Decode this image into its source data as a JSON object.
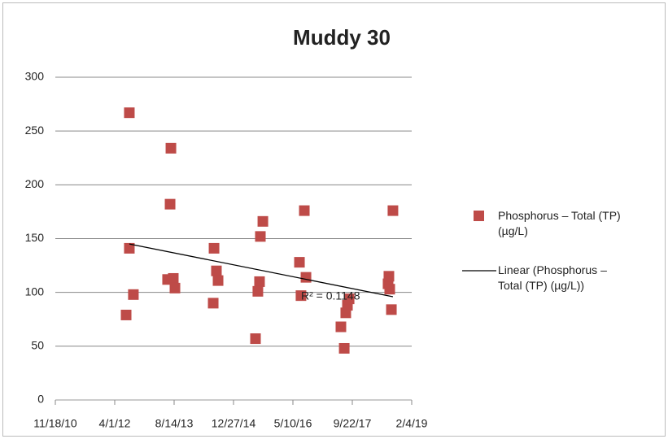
{
  "chart_data": {
    "type": "scatter",
    "title": "Muddy 30",
    "series": [
      {
        "name": "Phosphorus – Total (TP) (µg/L)",
        "color": "#be4b48",
        "x": [
          41123,
          41123,
          41157,
          41096,
          41473,
          41466,
          41445,
          41493,
          41507,
          41836,
          41856,
          41870,
          41829,
          42185,
          42226,
          42247,
          42219,
          42205,
          42596,
          42555,
          42568,
          42610,
          42904,
          42932,
          42945,
          42959,
          42973,
          43301,
          43308,
          43315,
          43342,
          43329
        ],
        "values": [
          267,
          141,
          98,
          79,
          234,
          182,
          112,
          113,
          104,
          141,
          120,
          111,
          90,
          57,
          152,
          166,
          110,
          101,
          176,
          128,
          97,
          114,
          68,
          48,
          81,
          88,
          94,
          108,
          115,
          103,
          176,
          84
        ]
      }
    ],
    "trendline": {
      "name": "Linear (Phosphorus – Total (TP) (µg/L))",
      "color": "#000000",
      "x": [
        41123,
        43342
      ],
      "values": [
        145,
        96
      ]
    },
    "annotation": "R² = 0.1148",
    "xlim": [
      40500,
      43500
    ],
    "xticks": [
      {
        "value": 40500,
        "label": "11/18/10"
      },
      {
        "value": 41000,
        "label": "4/1/12"
      },
      {
        "value": 41500,
        "label": "8/14/13"
      },
      {
        "value": 42000,
        "label": "12/27/14"
      },
      {
        "value": 42500,
        "label": "5/10/16"
      },
      {
        "value": 43000,
        "label": "9/22/17"
      },
      {
        "value": 43500,
        "label": "2/4/19"
      }
    ],
    "ylim": [
      0,
      300
    ],
    "yticks": [
      0,
      50,
      100,
      150,
      200,
      250,
      300
    ],
    "grid": true,
    "legend": "right"
  }
}
